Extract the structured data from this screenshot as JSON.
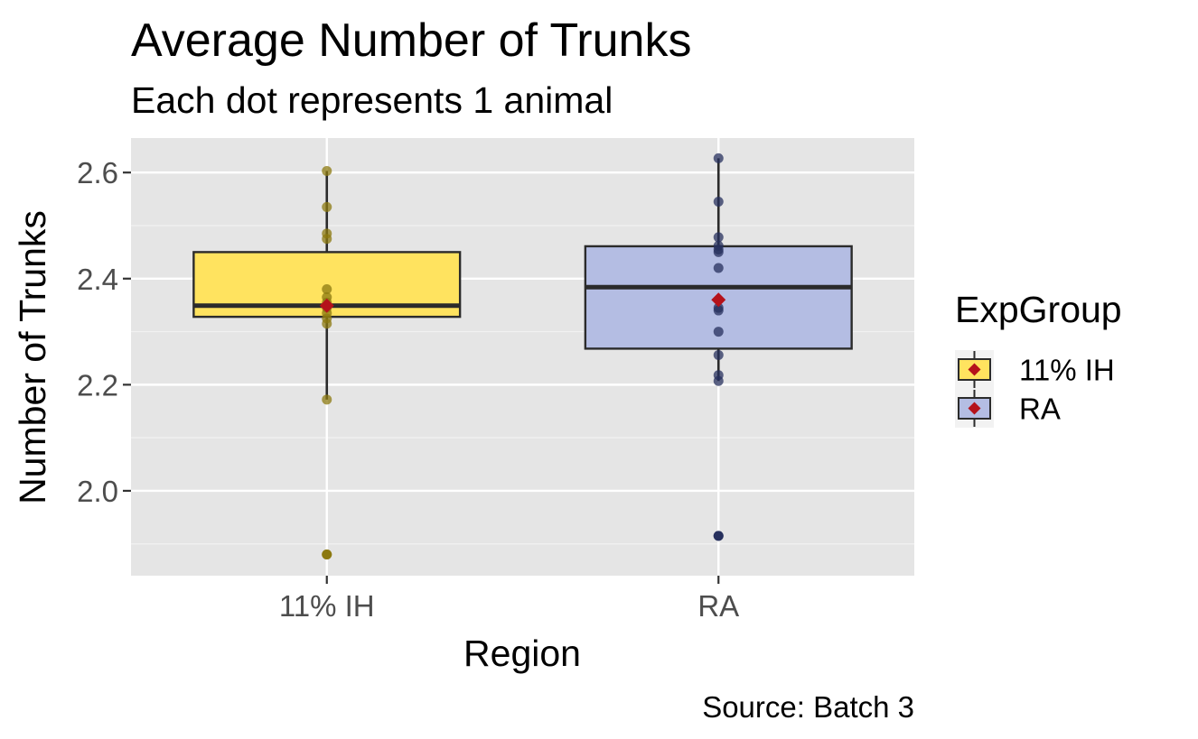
{
  "chart_data": {
    "type": "box",
    "title": "Average Number of Trunks",
    "subtitle": "Each dot represents 1 animal",
    "caption": "Source: Batch 3",
    "xlabel": "Region",
    "ylabel": "Number of Trunks",
    "categories": [
      "11% IH",
      "RA"
    ],
    "ylim": [
      1.84,
      2.665
    ],
    "yticks": [
      "2.0",
      "2.2",
      "2.4",
      "2.6"
    ],
    "ytick_values": [
      2.0,
      2.2,
      2.4,
      2.6
    ],
    "grid": true,
    "legend": {
      "title": "ExpGroup",
      "position": "right",
      "entries": [
        "11% IH",
        "RA"
      ]
    },
    "series": [
      {
        "name": "11% IH",
        "fill": "#ffe35f",
        "point_color": "#8c7a10",
        "box": {
          "min": 2.172,
          "q1": 2.328,
          "median": 2.349,
          "q3": 2.45,
          "max": 2.603
        },
        "mean": 2.349,
        "outliers": [
          1.88
        ],
        "points": [
          2.603,
          2.535,
          2.485,
          2.475,
          2.38,
          2.365,
          2.355,
          2.345,
          2.335,
          2.325,
          2.315,
          2.172,
          1.88
        ]
      },
      {
        "name": "RA",
        "fill": "#b4bde3",
        "point_color": "#27305e",
        "box": {
          "min": 2.207,
          "q1": 2.268,
          "median": 2.384,
          "q3": 2.461,
          "max": 2.627
        },
        "mean": 2.36,
        "outliers": [
          1.915
        ],
        "points": [
          2.627,
          2.545,
          2.478,
          2.462,
          2.455,
          2.45,
          2.42,
          2.345,
          2.34,
          2.3,
          2.256,
          2.218,
          2.207,
          1.915
        ]
      }
    ],
    "mean_marker_color": "#b5121b"
  }
}
